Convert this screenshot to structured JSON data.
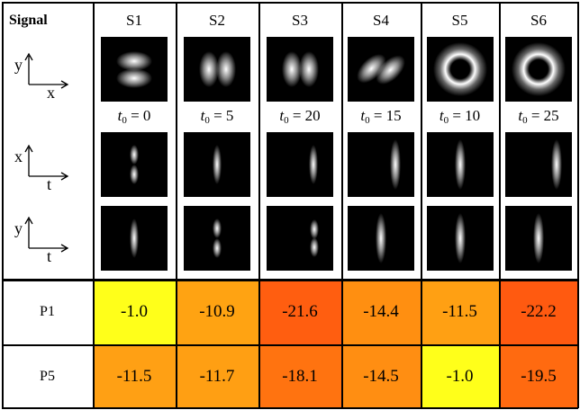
{
  "header": {
    "signal_label": "Signal",
    "columns": [
      "S1",
      "S2",
      "S3",
      "S4",
      "S5",
      "S6"
    ]
  },
  "axes": [
    {
      "vertical": "y",
      "horizontal": "x"
    },
    {
      "vertical": "x",
      "horizontal": "t"
    },
    {
      "vertical": "y",
      "horizontal": "t"
    }
  ],
  "t0": {
    "symbol": "t",
    "subscript": "0",
    "values": [
      "0",
      "5",
      "20",
      "15",
      "10",
      "25"
    ]
  },
  "rows": [
    {
      "label": "P1",
      "values": [
        "-1.0",
        "-10.9",
        "-21.6",
        "-14.4",
        "-11.5",
        "-22.2"
      ],
      "colors": [
        "#ffff1a",
        "#ffa312",
        "#ff5e10",
        "#ff8f11",
        "#ffa013",
        "#ff5a10"
      ]
    },
    {
      "label": "P5",
      "values": [
        "-11.5",
        "-11.7",
        "-18.1",
        "-14.5",
        "-1.0",
        "-19.5"
      ],
      "colors": [
        "#ffa014",
        "#ff9f13",
        "#ff7310",
        "#ff8e12",
        "#ffff1a",
        "#ff6a10"
      ]
    }
  ],
  "images": {
    "yx": [
      "two-lobes-horizontal",
      "two-lobes-vertical",
      "two-lobes-vertical",
      "two-lobes-diagonal",
      "ring",
      "ring"
    ],
    "xt": [
      "two-spots",
      "single-streak",
      "single-streak-right",
      "single-streak-tall",
      "single-streak-tall",
      "single-streak-right-tall"
    ],
    "yt": [
      "single-streak",
      "two-spots",
      "two-spots-right",
      "single-streak-tall",
      "single-streak-tall",
      "single-streak-tall"
    ]
  }
}
